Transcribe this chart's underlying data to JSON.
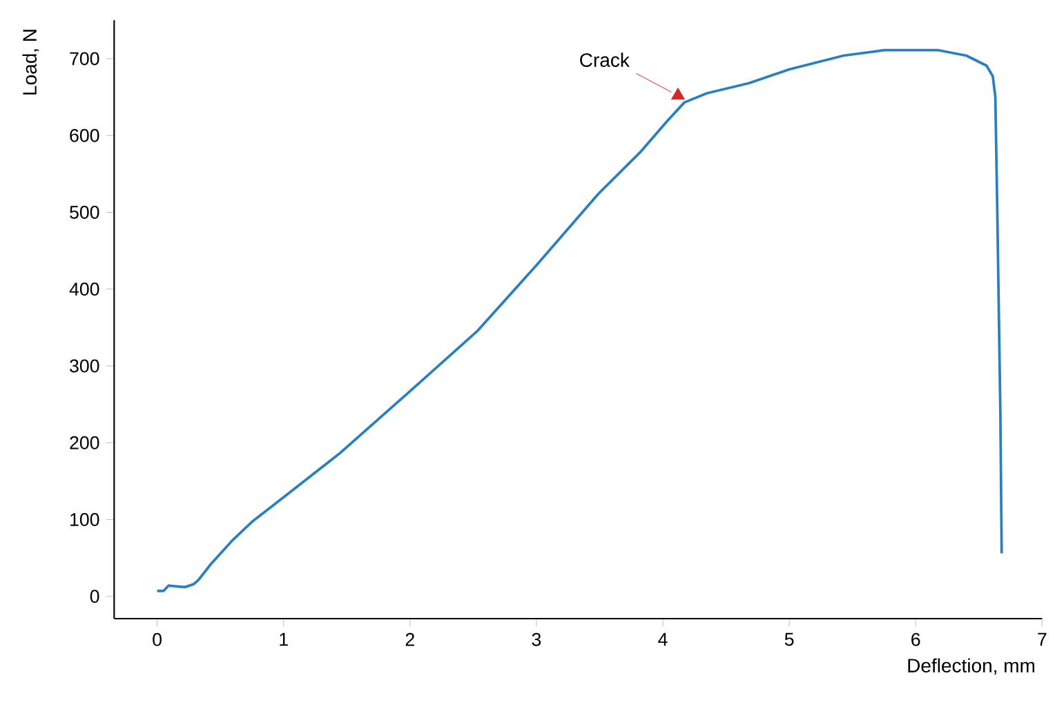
{
  "chart_data": {
    "type": "line",
    "xlabel": "Deflection, mm",
    "ylabel": "Load, N",
    "series": [
      {
        "color": "#2a7fc0",
        "x": [
          0,
          0.05,
          0.09,
          0.22,
          0.29,
          0.33,
          0.43,
          0.59,
          0.75,
          1,
          1.45,
          2,
          2.53,
          3,
          3.49,
          3.82,
          4.03,
          4.17,
          4.35,
          4.68,
          5,
          5.43,
          5.75,
          6,
          6.18,
          6.4,
          6.56,
          6.61,
          6.63,
          6.645,
          6.67,
          6.68
        ],
        "values": [
          7,
          7,
          14,
          12,
          16,
          22,
          43,
          72,
          97,
          129,
          187,
          267,
          345,
          431,
          524,
          578,
          618,
          643,
          655,
          668,
          686,
          704,
          711,
          711,
          711,
          704,
          691,
          677,
          650,
          506,
          237,
          56
        ]
      },
      {
        "type": "scatter",
        "name": "Crack",
        "color": "#d62728",
        "marker": "triangle",
        "x": [
          4.12
        ],
        "values": [
          652
        ]
      }
    ],
    "xlim": [
      -0.34,
      7.0
    ],
    "ylim": [
      -29,
      750
    ],
    "xticks": [
      0,
      1,
      2,
      3,
      4,
      5,
      6,
      7
    ],
    "yticks": [
      0,
      100,
      200,
      300,
      400,
      500,
      600,
      700
    ]
  }
}
